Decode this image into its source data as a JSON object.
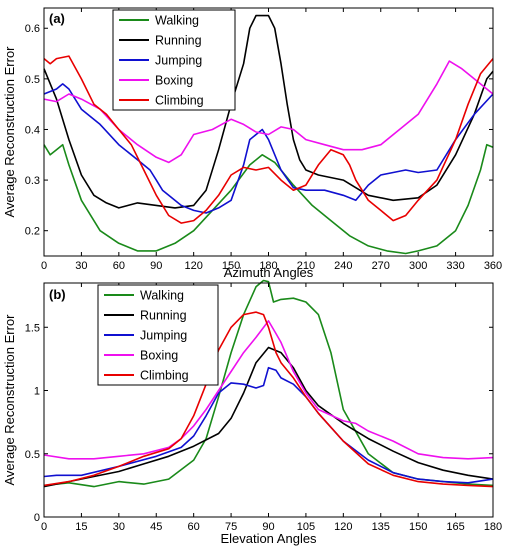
{
  "chart_data": [
    {
      "type": "line",
      "panel_label": "(a)",
      "xlabel": "Azimuth Angles",
      "ylabel": "Average Reconstruction Error",
      "xlim": [
        0,
        360
      ],
      "ylim": [
        0.15,
        0.64
      ],
      "xticks": [
        0,
        30,
        60,
        90,
        120,
        150,
        180,
        210,
        240,
        270,
        300,
        330,
        360
      ],
      "yticks": [
        0.2,
        0.3,
        0.4,
        0.5,
        0.6
      ],
      "ytick_labels": [
        "0.2",
        "0.3",
        "0.4",
        "0.5",
        "0.6"
      ],
      "legend_position": "top-left",
      "series": [
        {
          "name": "Walking",
          "color": "#1a8a1a",
          "x": [
            0,
            5,
            10,
            15,
            20,
            30,
            45,
            60,
            75,
            90,
            105,
            120,
            135,
            150,
            165,
            175,
            185,
            200,
            215,
            230,
            245,
            260,
            275,
            290,
            300,
            315,
            330,
            340,
            350,
            355,
            360
          ],
          "y": [
            0.37,
            0.35,
            0.36,
            0.37,
            0.33,
            0.26,
            0.2,
            0.175,
            0.16,
            0.16,
            0.175,
            0.2,
            0.24,
            0.28,
            0.33,
            0.35,
            0.335,
            0.29,
            0.25,
            0.22,
            0.19,
            0.17,
            0.16,
            0.155,
            0.16,
            0.17,
            0.2,
            0.25,
            0.32,
            0.37,
            0.365
          ]
        },
        {
          "name": "Running",
          "color": "#000000",
          "x": [
            0,
            10,
            20,
            30,
            40,
            50,
            60,
            75,
            90,
            105,
            120,
            130,
            140,
            150,
            160,
            165,
            170,
            180,
            185,
            190,
            195,
            200,
            205,
            210,
            220,
            240,
            260,
            280,
            300,
            315,
            330,
            345,
            355,
            360
          ],
          "y": [
            0.52,
            0.46,
            0.38,
            0.31,
            0.27,
            0.255,
            0.245,
            0.255,
            0.25,
            0.245,
            0.25,
            0.28,
            0.36,
            0.45,
            0.53,
            0.6,
            0.625,
            0.625,
            0.6,
            0.53,
            0.45,
            0.38,
            0.34,
            0.32,
            0.31,
            0.3,
            0.27,
            0.26,
            0.265,
            0.29,
            0.35,
            0.43,
            0.5,
            0.515
          ]
        },
        {
          "name": "Jumping",
          "color": "#1010d0",
          "x": [
            0,
            10,
            15,
            20,
            30,
            45,
            60,
            75,
            85,
            90,
            95,
            100,
            110,
            120,
            130,
            140,
            150,
            160,
            165,
            175,
            180,
            190,
            200,
            210,
            225,
            240,
            250,
            260,
            270,
            280,
            290,
            300,
            315,
            330,
            345,
            360
          ],
          "y": [
            0.47,
            0.48,
            0.49,
            0.48,
            0.44,
            0.41,
            0.37,
            0.34,
            0.32,
            0.3,
            0.28,
            0.27,
            0.25,
            0.24,
            0.235,
            0.245,
            0.26,
            0.33,
            0.38,
            0.4,
            0.38,
            0.32,
            0.285,
            0.28,
            0.28,
            0.27,
            0.26,
            0.29,
            0.31,
            0.315,
            0.32,
            0.315,
            0.32,
            0.38,
            0.43,
            0.47
          ]
        },
        {
          "name": "Boxing",
          "color": "#ee10ee",
          "x": [
            0,
            10,
            20,
            30,
            45,
            60,
            75,
            90,
            100,
            110,
            120,
            135,
            150,
            160,
            170,
            180,
            190,
            200,
            210,
            225,
            240,
            255,
            270,
            285,
            300,
            315,
            325,
            335,
            345,
            355,
            360
          ],
          "y": [
            0.46,
            0.455,
            0.47,
            0.46,
            0.44,
            0.4,
            0.37,
            0.345,
            0.335,
            0.35,
            0.39,
            0.4,
            0.42,
            0.41,
            0.395,
            0.39,
            0.405,
            0.4,
            0.38,
            0.37,
            0.36,
            0.36,
            0.37,
            0.4,
            0.43,
            0.49,
            0.535,
            0.52,
            0.5,
            0.48,
            0.47
          ]
        },
        {
          "name": "Climbing",
          "color": "#e80000",
          "x": [
            0,
            5,
            10,
            20,
            30,
            40,
            50,
            60,
            70,
            80,
            90,
            100,
            110,
            120,
            130,
            140,
            150,
            160,
            170,
            180,
            190,
            200,
            210,
            220,
            230,
            240,
            245,
            250,
            260,
            270,
            280,
            290,
            300,
            315,
            330,
            340,
            350,
            360
          ],
          "y": [
            0.54,
            0.53,
            0.54,
            0.545,
            0.5,
            0.45,
            0.43,
            0.4,
            0.37,
            0.32,
            0.27,
            0.23,
            0.215,
            0.22,
            0.24,
            0.27,
            0.31,
            0.325,
            0.32,
            0.325,
            0.3,
            0.28,
            0.29,
            0.33,
            0.36,
            0.35,
            0.33,
            0.3,
            0.26,
            0.24,
            0.22,
            0.23,
            0.26,
            0.3,
            0.38,
            0.45,
            0.51,
            0.54
          ]
        }
      ]
    },
    {
      "type": "line",
      "panel_label": "(b)",
      "xlabel": "Elevation Angles",
      "ylabel": "Average Reconstruction Error",
      "xlim": [
        0,
        180
      ],
      "ylim": [
        0,
        1.85
      ],
      "xticks": [
        0,
        15,
        30,
        45,
        60,
        75,
        90,
        105,
        120,
        135,
        150,
        165,
        180
      ],
      "yticks": [
        0,
        0.5,
        1,
        1.5
      ],
      "ytick_labels": [
        "0",
        "0.5",
        "1",
        "1.5"
      ],
      "legend_position": "top-left",
      "series": [
        {
          "name": "Walking",
          "color": "#1a8a1a",
          "x": [
            0,
            10,
            20,
            30,
            40,
            50,
            60,
            65,
            70,
            75,
            80,
            85,
            88,
            90,
            92,
            95,
            100,
            105,
            110,
            115,
            120,
            130,
            140,
            150,
            160,
            170,
            180
          ],
          "y": [
            0.25,
            0.27,
            0.24,
            0.28,
            0.26,
            0.3,
            0.45,
            0.62,
            0.95,
            1.3,
            1.6,
            1.82,
            1.87,
            1.86,
            1.7,
            1.72,
            1.73,
            1.7,
            1.6,
            1.3,
            0.85,
            0.5,
            0.35,
            0.3,
            0.28,
            0.26,
            0.25
          ]
        },
        {
          "name": "Running",
          "color": "#000000",
          "x": [
            0,
            10,
            20,
            30,
            40,
            50,
            60,
            70,
            75,
            80,
            85,
            90,
            95,
            100,
            105,
            110,
            120,
            130,
            140,
            150,
            160,
            170,
            180
          ],
          "y": [
            0.24,
            0.28,
            0.32,
            0.36,
            0.42,
            0.48,
            0.56,
            0.66,
            0.78,
            0.98,
            1.22,
            1.34,
            1.3,
            1.18,
            1.0,
            0.88,
            0.74,
            0.62,
            0.52,
            0.43,
            0.37,
            0.33,
            0.3
          ]
        },
        {
          "name": "Jumping",
          "color": "#1010d0",
          "x": [
            0,
            5,
            15,
            30,
            45,
            55,
            60,
            65,
            70,
            75,
            80,
            85,
            88,
            90,
            93,
            95,
            100,
            105,
            110,
            120,
            130,
            140,
            150,
            160,
            170,
            180
          ],
          "y": [
            0.32,
            0.33,
            0.33,
            0.4,
            0.48,
            0.55,
            0.64,
            0.8,
            0.98,
            1.06,
            1.05,
            1.02,
            1.04,
            1.18,
            1.16,
            1.1,
            1.05,
            0.95,
            0.82,
            0.6,
            0.45,
            0.35,
            0.3,
            0.28,
            0.27,
            0.3
          ]
        },
        {
          "name": "Boxing",
          "color": "#ee10ee",
          "x": [
            0,
            10,
            20,
            30,
            40,
            50,
            55,
            60,
            65,
            70,
            75,
            80,
            85,
            90,
            93,
            95,
            100,
            105,
            110,
            120,
            125,
            130,
            140,
            150,
            160,
            170,
            180
          ],
          "y": [
            0.49,
            0.46,
            0.46,
            0.48,
            0.5,
            0.55,
            0.62,
            0.72,
            0.85,
            1.0,
            1.15,
            1.3,
            1.42,
            1.55,
            1.45,
            1.38,
            1.15,
            0.98,
            0.85,
            0.76,
            0.74,
            0.68,
            0.6,
            0.5,
            0.47,
            0.46,
            0.47
          ]
        },
        {
          "name": "Climbing",
          "color": "#e80000",
          "x": [
            0,
            10,
            20,
            30,
            40,
            50,
            55,
            60,
            65,
            70,
            75,
            80,
            85,
            88,
            90,
            93,
            95,
            100,
            105,
            110,
            120,
            130,
            140,
            150,
            160,
            170,
            180
          ],
          "y": [
            0.25,
            0.28,
            0.33,
            0.4,
            0.48,
            0.54,
            0.62,
            0.8,
            1.05,
            1.32,
            1.5,
            1.6,
            1.62,
            1.6,
            1.5,
            1.3,
            1.22,
            1.1,
            0.95,
            0.82,
            0.6,
            0.42,
            0.33,
            0.28,
            0.26,
            0.25,
            0.24
          ]
        }
      ]
    }
  ]
}
